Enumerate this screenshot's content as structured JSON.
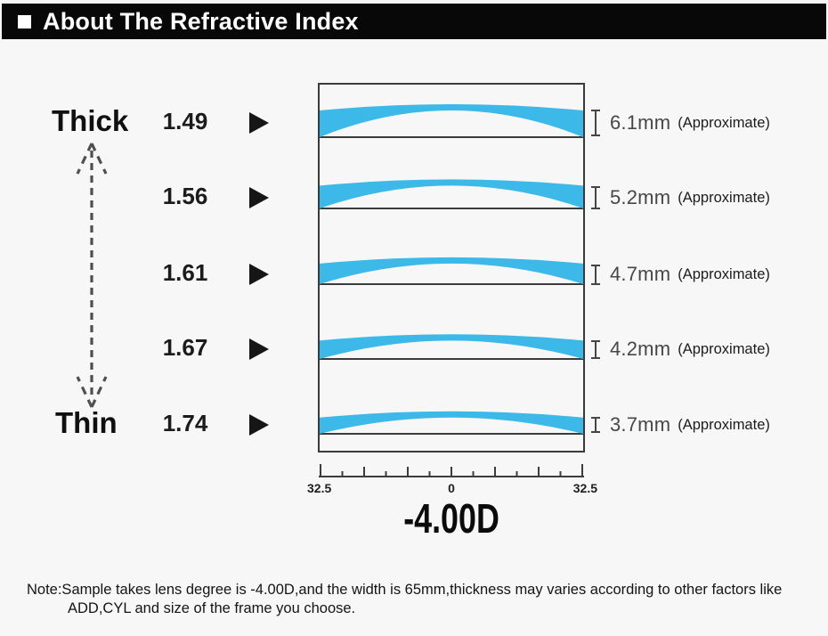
{
  "header": {
    "title": "About The Refractive Index",
    "bullet_icon": "white-square"
  },
  "scale": {
    "thick": "Thick",
    "thin": "Thin"
  },
  "rows": [
    {
      "index": "1.49",
      "thickness": "6.1mm",
      "thickness_mm": 6.1,
      "approx": "(Approximate)"
    },
    {
      "index": "1.56",
      "thickness": "5.2mm",
      "thickness_mm": 5.2,
      "approx": "(Approximate)"
    },
    {
      "index": "1.61",
      "thickness": "4.7mm",
      "thickness_mm": 4.7,
      "approx": "(Approximate)"
    },
    {
      "index": "1.67",
      "thickness": "4.2mm",
      "thickness_mm": 4.2,
      "approx": "(Approximate)"
    },
    {
      "index": "1.74",
      "thickness": "3.7mm",
      "thickness_mm": 3.7,
      "approx": "(Approximate)"
    }
  ],
  "ruler": {
    "left_label": "32.5",
    "center_label": "0",
    "right_label": "32.5"
  },
  "power_label": "-4.00D",
  "note": {
    "line1": "Note:Sample takes lens degree is -4.00D,and the width is 65mm,thickness may varies according to other factors like",
    "line2": "ADD,CYL and size of the frame you choose."
  },
  "colors": {
    "lens_blue": "#3cb9e8",
    "header_bg": "#080808",
    "page_bg": "#f7f7f7",
    "line_gray": "#3b3b3b"
  }
}
